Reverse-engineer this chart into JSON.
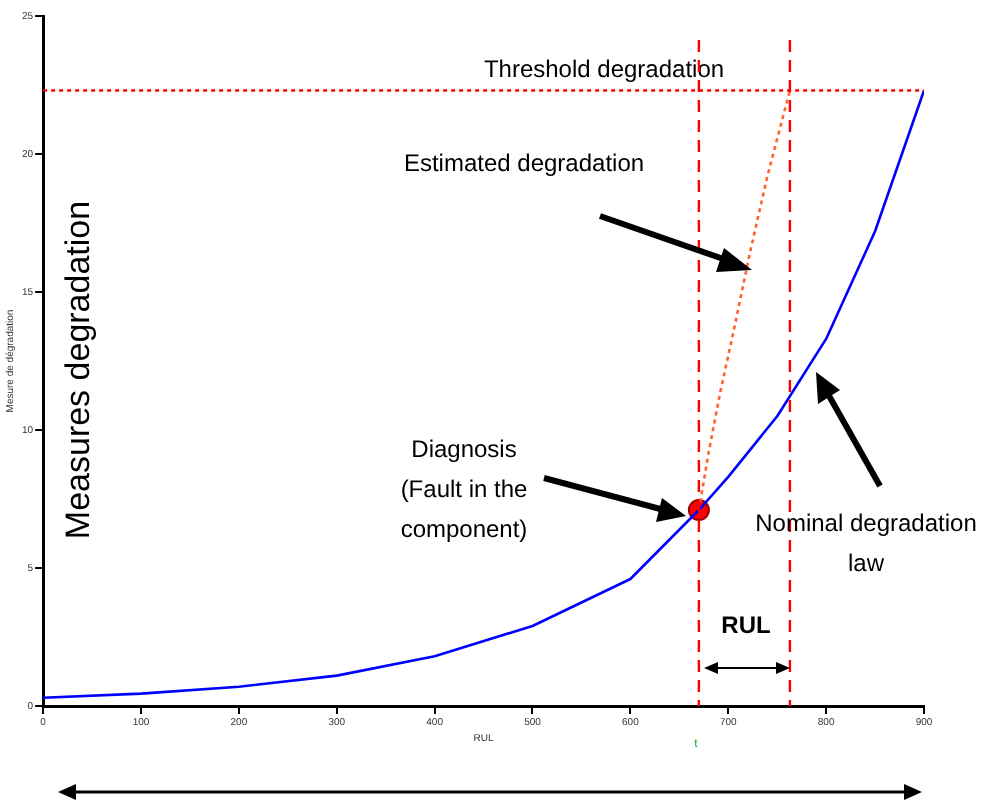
{
  "chart_data": {
    "type": "line",
    "xlabel": "RUL",
    "ylabel": "Mesure de dégradation",
    "xlim": [
      0,
      900
    ],
    "ylim": [
      0,
      25
    ],
    "xticks": [
      0,
      100,
      200,
      300,
      400,
      500,
      600,
      700,
      800,
      900
    ],
    "yticks": [
      0,
      5,
      10,
      15,
      20,
      25
    ],
    "grid": false,
    "legend": false,
    "series": [
      {
        "color": "#0000ff",
        "x": [
          0,
          100,
          200,
          300,
          400,
          500,
          600,
          670,
          700,
          750,
          800,
          850,
          900
        ],
        "values": [
          0.3,
          0.45,
          0.7,
          1.1,
          1.8,
          2.9,
          4.6,
          7.1,
          8.3,
          10.5,
          13.3,
          17.2,
          22.3
        ]
      },
      {
        "color": "#ff6030",
        "line_style": "dotted",
        "x": [
          670,
          680,
          692,
          705,
          722,
          740,
          763
        ],
        "values": [
          7.1,
          9.2,
          11.4,
          13.5,
          16.4,
          19.2,
          22.3
        ]
      },
      {
        "type": "scatter",
        "color": "#ff0000",
        "marker": "circle",
        "x": [
          670
        ],
        "values": [
          7.1
        ]
      }
    ],
    "ref_lines": [
      {
        "axis": "y",
        "value": 22.3,
        "label": "Threshold degradation",
        "color": "#ff0000",
        "line_style": "dotted"
      },
      {
        "axis": "x",
        "value": 670,
        "color": "#ff0000",
        "line_style": "dashed"
      },
      {
        "axis": "x",
        "value": 763,
        "color": "#ff0000",
        "line_style": "dashed"
      }
    ],
    "annotations": [
      "Measures degradation",
      "Estimated degradation",
      "Diagnosis (Fault in the component)",
      "Nominal degradation law",
      "RUL",
      "t"
    ]
  }
}
